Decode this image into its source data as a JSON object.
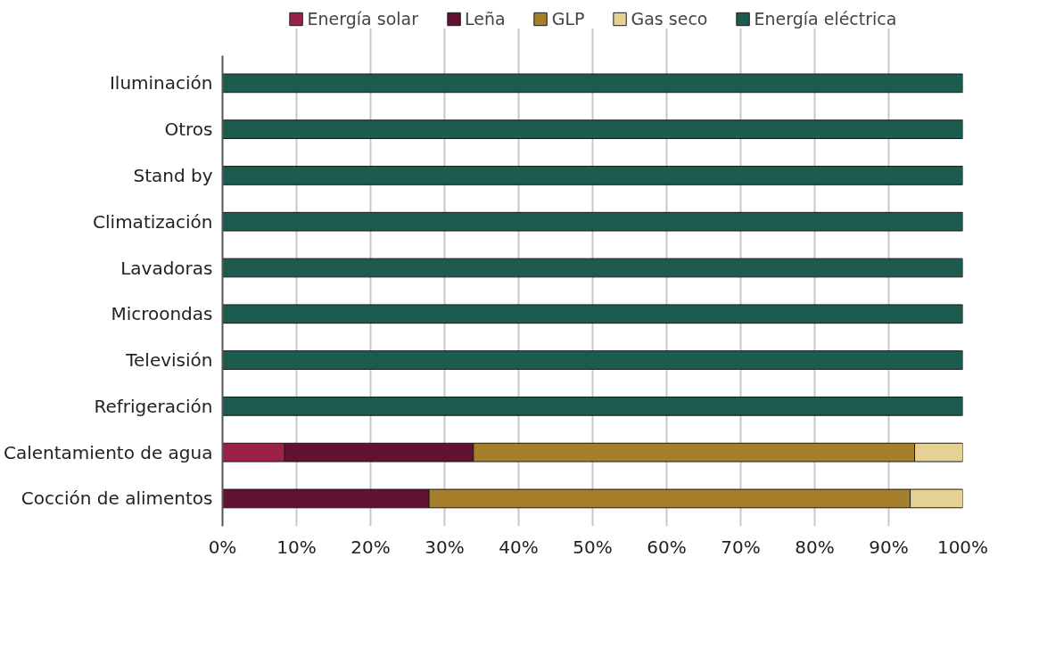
{
  "chart_data": {
    "type": "bar",
    "orientation": "horizontal",
    "stacked": true,
    "categories": [
      "Iluminación",
      "Otros",
      "Stand by",
      "Climatización",
      "Lavadoras",
      "Microondas",
      "Televisión",
      "Refrigeración",
      "Calentamiento de agua",
      "Cocción de alimentos"
    ],
    "series": [
      {
        "name": "Energía solar",
        "color": "#9b2247",
        "values": [
          0,
          0,
          0,
          0,
          0,
          0,
          0,
          0,
          8.4,
          0
        ]
      },
      {
        "name": "Leña",
        "color": "#611232",
        "values": [
          0,
          0,
          0,
          0,
          0,
          0,
          0,
          0,
          25.5,
          27.9
        ]
      },
      {
        "name": "GLP",
        "color": "#a57f2c",
        "values": [
          0,
          0,
          0,
          0,
          0,
          0,
          0,
          0,
          59.6,
          65.0
        ]
      },
      {
        "name": "Gas seco",
        "color": "#e6d194",
        "values": [
          0,
          0,
          0,
          0,
          0,
          0,
          0,
          0,
          6.5,
          7.1
        ]
      },
      {
        "name": "Energía eléctrica",
        "color": "#1e5b4f",
        "values": [
          100,
          100,
          100,
          100,
          100,
          100,
          100,
          100,
          0,
          0
        ]
      }
    ],
    "xlim": [
      0,
      100
    ],
    "xticks": [
      {
        "value": 0,
        "label": "0%"
      },
      {
        "value": 10,
        "label": "10%"
      },
      {
        "value": 20,
        "label": "20%"
      },
      {
        "value": 30,
        "label": "30%"
      },
      {
        "value": 40,
        "label": "40%"
      },
      {
        "value": 50,
        "label": "50%"
      },
      {
        "value": 60,
        "label": "60%"
      },
      {
        "value": 70,
        "label": "70%"
      },
      {
        "value": 80,
        "label": "80%"
      },
      {
        "value": 90,
        "label": "90%"
      },
      {
        "value": 100,
        "label": "100%"
      }
    ],
    "grid": "x",
    "legend": "top"
  }
}
